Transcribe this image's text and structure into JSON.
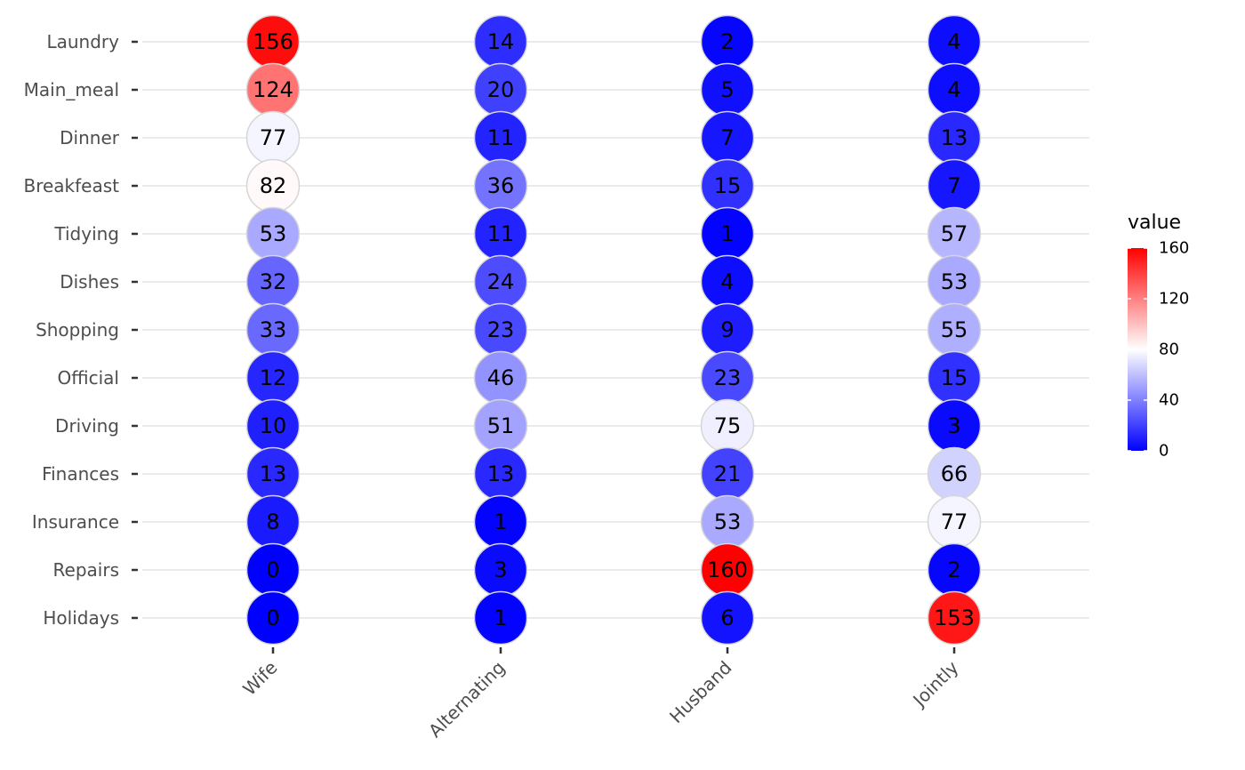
{
  "chart_data": {
    "type": "heatmap",
    "rows": [
      "Laundry",
      "Main_meal",
      "Dinner",
      "Breakfeast",
      "Tidying",
      "Dishes",
      "Shopping",
      "Official",
      "Driving",
      "Finances",
      "Insurance",
      "Repairs",
      "Holidays"
    ],
    "columns": [
      "Wife",
      "Alternating",
      "Husband",
      "Jointly"
    ],
    "values": [
      [
        156,
        14,
        2,
        4
      ],
      [
        124,
        20,
        5,
        4
      ],
      [
        77,
        11,
        7,
        13
      ],
      [
        82,
        36,
        15,
        7
      ],
      [
        53,
        11,
        1,
        57
      ],
      [
        32,
        24,
        4,
        53
      ],
      [
        33,
        23,
        9,
        55
      ],
      [
        12,
        46,
        23,
        15
      ],
      [
        10,
        51,
        75,
        3
      ],
      [
        13,
        13,
        21,
        66
      ],
      [
        8,
        1,
        53,
        77
      ],
      [
        0,
        3,
        160,
        2
      ],
      [
        0,
        1,
        6,
        153
      ]
    ],
    "legend": {
      "title": "value",
      "ticks": [
        0,
        40,
        80,
        120,
        160
      ],
      "range": [
        0,
        160
      ],
      "placement": "right"
    },
    "colors": {
      "low": "#0000ff",
      "mid": "#ffffff",
      "high": "#ff0000",
      "midpoint": 80
    },
    "grid": true
  }
}
